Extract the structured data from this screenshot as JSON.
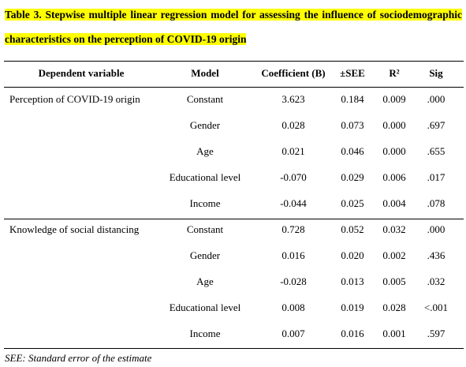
{
  "header": {
    "title": "Table 3. Stepwise multiple linear regression model for assessing the influence of sociodemographic characteristics on the perception of COVID-19 origin"
  },
  "table": {
    "columns": [
      "Dependent variable",
      "Model",
      "Coefficient (B)",
      "±SEE",
      "R²",
      "Sig"
    ],
    "groups": [
      {
        "dependent": "Perception of COVID-19 origin",
        "rows": [
          [
            "Constant",
            "3.623",
            "0.184",
            "0.009",
            ".000"
          ],
          [
            "Gender",
            "0.028",
            "0.073",
            "0.000",
            ".697"
          ],
          [
            "Age",
            "0.021",
            "0.046",
            "0.000",
            ".655"
          ],
          [
            "Educational level",
            "-0.070",
            "0.029",
            "0.006",
            ".017"
          ],
          [
            "Income",
            "-0.044",
            "0.025",
            "0.004",
            ".078"
          ]
        ]
      },
      {
        "dependent": "Knowledge of social distancing",
        "rows": [
          [
            "Constant",
            "0.728",
            "0.052",
            "0.032",
            ".000"
          ],
          [
            "Gender",
            "0.016",
            "0.020",
            "0.002",
            ".436"
          ],
          [
            "Age",
            "-0.028",
            "0.013",
            "0.005",
            ".032"
          ],
          [
            "Educational level",
            "0.008",
            "0.019",
            "0.028",
            "<.001"
          ],
          [
            "Income",
            "0.007",
            "0.016",
            "0.001",
            ".597"
          ]
        ]
      }
    ]
  },
  "footnote": "SEE: Standard error of the estimate"
}
